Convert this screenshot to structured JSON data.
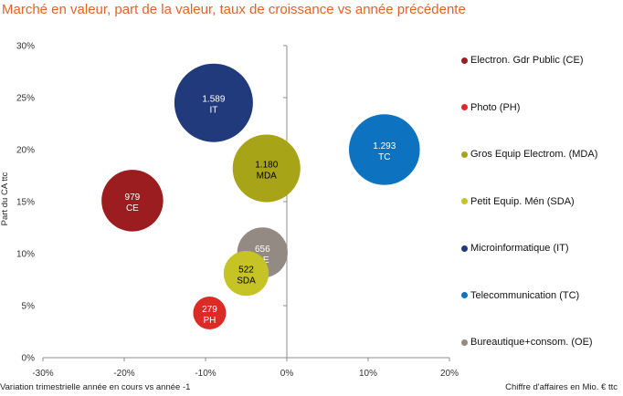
{
  "title": "Marché en valeur, part de la valeur, taux de croissance vs année précédente",
  "chart_data": {
    "type": "bubble",
    "title": "Marché en valeur, part de la valeur, taux de croissance vs année précédente",
    "xlabel": "Variation trimestrielle année en cours vs année -1",
    "ylabel": "Part du CA ttc",
    "size_label": "Chiffre d'affaires en Mio. € ttc",
    "xlim": [
      -30,
      20
    ],
    "ylim": [
      0,
      30
    ],
    "x_ticks": [
      "-30%",
      "-20%",
      "-10%",
      "0%",
      "10%",
      "20%"
    ],
    "y_ticks": [
      "0%",
      "5%",
      "10%",
      "15%",
      "20%",
      "25%",
      "30%"
    ],
    "grid": false,
    "legend_position": "right",
    "series": [
      {
        "name": "Electron. Gdr Public (CE)",
        "code": "CE",
        "x": -19,
        "y": 15.1,
        "size": 979,
        "size_label": "979",
        "color": "#9b1d20",
        "label_color": "#ffffff"
      },
      {
        "name": "Photo (PH)",
        "code": "PH",
        "x": -9.5,
        "y": 4.3,
        "size": 279,
        "size_label": "279",
        "color": "#dc2a26",
        "label_color": "#ffffff"
      },
      {
        "name": "Gros Equip Electrom. (MDA)",
        "code": "MDA",
        "x": -2.5,
        "y": 18.2,
        "size": 1180,
        "size_label": "1.180",
        "color": "#a8a418",
        "label_color": "#000000"
      },
      {
        "name": "Petit Equip. Mén (SDA)",
        "code": "SDA",
        "x": -5,
        "y": 8.1,
        "size": 522,
        "size_label": "522",
        "color": "#c6c424",
        "label_color": "#000000"
      },
      {
        "name": "Microinformatique (IT)",
        "code": "IT",
        "x": -9,
        "y": 24.5,
        "size": 1589,
        "size_label": "1.589",
        "color": "#213a7b",
        "label_color": "#ffffff"
      },
      {
        "name": "Telecommunication (TC)",
        "code": "TC",
        "x": 12,
        "y": 20,
        "size": 1293,
        "size_label": "1.293",
        "color": "#0d73c0",
        "label_color": "#ffffff"
      },
      {
        "name": "Bureautique+consom. (OE)",
        "code": "OE",
        "x": -3,
        "y": 10.1,
        "size": 656,
        "size_label": "656",
        "color": "#948a84",
        "label_color": "#ffffff"
      }
    ]
  }
}
